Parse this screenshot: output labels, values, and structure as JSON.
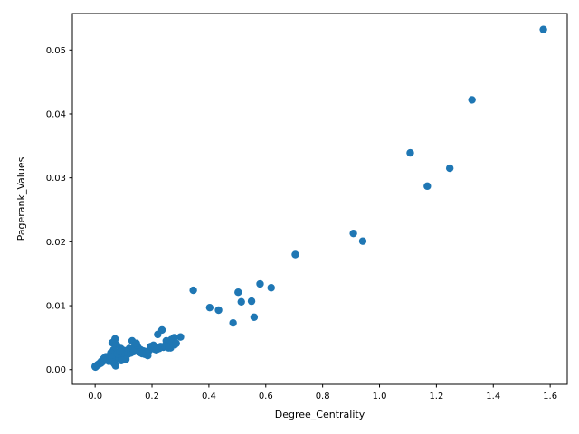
{
  "chart_data": {
    "type": "scatter",
    "xlabel": "Degree_Centrality",
    "ylabel": "Pagerank_Values",
    "xlim": [
      -0.08,
      1.66
    ],
    "ylim": [
      -0.0023,
      0.0557
    ],
    "xticks": [
      0.0,
      0.2,
      0.4,
      0.6,
      0.8,
      1.0,
      1.2,
      1.4,
      1.6
    ],
    "xtick_labels": [
      "0.0",
      "0.2",
      "0.4",
      "0.6",
      "0.8",
      "1.0",
      "1.2",
      "1.4",
      "1.6"
    ],
    "yticks": [
      0.0,
      0.01,
      0.02,
      0.03,
      0.04,
      0.05
    ],
    "ytick_labels": [
      "0.00",
      "0.01",
      "0.02",
      "0.03",
      "0.04",
      "0.05"
    ],
    "marker_color": "#1f77b4",
    "grid": false,
    "points": [
      [
        1.576,
        0.0532
      ],
      [
        1.325,
        0.0422
      ],
      [
        1.108,
        0.0339
      ],
      [
        1.247,
        0.0315
      ],
      [
        1.168,
        0.0287
      ],
      [
        0.908,
        0.0213
      ],
      [
        0.941,
        0.0201
      ],
      [
        0.704,
        0.018
      ],
      [
        0.58,
        0.0134
      ],
      [
        0.619,
        0.0128
      ],
      [
        0.345,
        0.0124
      ],
      [
        0.503,
        0.0121
      ],
      [
        0.514,
        0.0106
      ],
      [
        0.55,
        0.0107
      ],
      [
        0.403,
        0.0097
      ],
      [
        0.434,
        0.0093
      ],
      [
        0.559,
        0.0082
      ],
      [
        0.485,
        0.0073
      ],
      [
        0.235,
        0.0062
      ],
      [
        0.22,
        0.0055
      ],
      [
        0.3,
        0.0051
      ],
      [
        0.278,
        0.005
      ],
      [
        0.268,
        0.0047
      ],
      [
        0.25,
        0.0045
      ],
      [
        0.264,
        0.004
      ],
      [
        0.28,
        0.0039
      ],
      [
        0.24,
        0.0035
      ],
      [
        0.255,
        0.0036
      ],
      [
        0.265,
        0.0034
      ],
      [
        0.225,
        0.0033
      ],
      [
        0.21,
        0.0032
      ],
      [
        0.2,
        0.0035
      ],
      [
        0.19,
        0.003
      ],
      [
        0.18,
        0.0028
      ],
      [
        0.175,
        0.0024
      ],
      [
        0.185,
        0.0022
      ],
      [
        0.17,
        0.0029
      ],
      [
        0.16,
        0.0031
      ],
      [
        0.15,
        0.0035
      ],
      [
        0.14,
        0.0038
      ],
      [
        0.13,
        0.0045
      ],
      [
        0.145,
        0.0041
      ],
      [
        0.12,
        0.0033
      ],
      [
        0.11,
        0.0029
      ],
      [
        0.1,
        0.003
      ],
      [
        0.09,
        0.0033
      ],
      [
        0.095,
        0.0025
      ],
      [
        0.085,
        0.0022
      ],
      [
        0.08,
        0.0018
      ],
      [
        0.07,
        0.0048
      ],
      [
        0.06,
        0.0042
      ],
      [
        0.075,
        0.0039
      ],
      [
        0.065,
        0.0031
      ],
      [
        0.055,
        0.0026
      ],
      [
        0.05,
        0.0021
      ],
      [
        0.045,
        0.0019
      ],
      [
        0.04,
        0.0017
      ],
      [
        0.035,
        0.0015
      ],
      [
        0.03,
        0.0014
      ],
      [
        0.025,
        0.0012
      ],
      [
        0.02,
        0.001
      ],
      [
        0.015,
        0.0009
      ],
      [
        0.01,
        0.0008
      ],
      [
        0.005,
        0.0006
      ],
      [
        0.002,
        0.0005
      ],
      [
        0.001,
        0.0004
      ],
      [
        0.0,
        0.0005
      ],
      [
        0.008,
        0.0007
      ],
      [
        0.012,
        0.0008
      ],
      [
        0.018,
        0.0011
      ],
      [
        0.022,
        0.0013
      ],
      [
        0.028,
        0.0016
      ],
      [
        0.032,
        0.0018
      ],
      [
        0.038,
        0.002
      ],
      [
        0.042,
        0.0015
      ],
      [
        0.048,
        0.0013
      ],
      [
        0.052,
        0.0017
      ],
      [
        0.058,
        0.0019
      ],
      [
        0.062,
        0.0012
      ],
      [
        0.068,
        0.0009
      ],
      [
        0.072,
        0.0006
      ],
      [
        0.078,
        0.0025
      ],
      [
        0.088,
        0.0028
      ],
      [
        0.098,
        0.002
      ],
      [
        0.105,
        0.0022
      ],
      [
        0.115,
        0.0024
      ],
      [
        0.125,
        0.0026
      ],
      [
        0.135,
        0.0028
      ],
      [
        0.155,
        0.0027
      ],
      [
        0.165,
        0.0025
      ],
      [
        0.195,
        0.0036
      ],
      [
        0.205,
        0.0038
      ],
      [
        0.215,
        0.0031
      ],
      [
        0.23,
        0.0036
      ],
      [
        0.245,
        0.0037
      ],
      [
        0.258,
        0.0034
      ],
      [
        0.272,
        0.0042
      ],
      [
        0.285,
        0.0041
      ],
      [
        0.108,
        0.0016
      ],
      [
        0.092,
        0.0014
      ]
    ]
  }
}
